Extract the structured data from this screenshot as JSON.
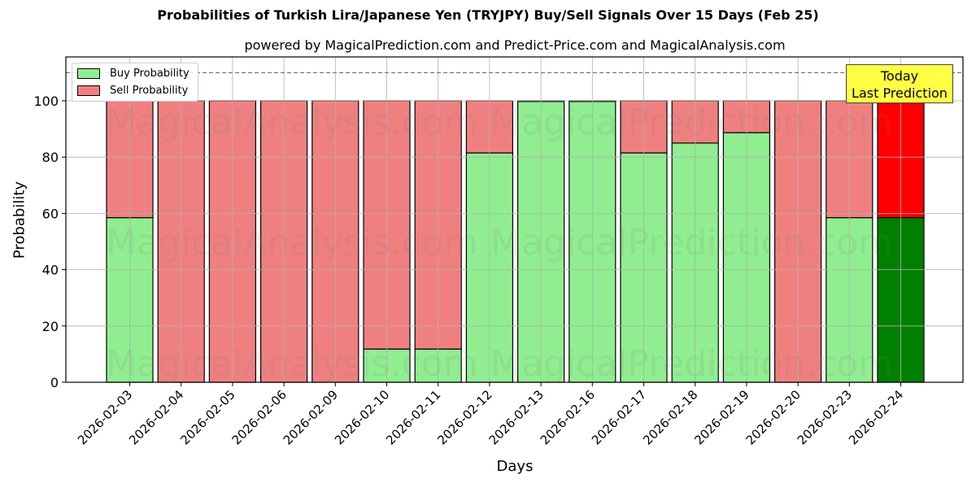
{
  "title": "Probabilities of Turkish Lira/Japanese Yen (TRYJPY) Buy/Sell Signals Over 15 Days (Feb 25)",
  "subtitle": "powered by MagicalPrediction.com and Predict-Price.com and MagicalAnalysis.com",
  "legend": {
    "buy": "Buy Probability",
    "sell": "Sell Probability"
  },
  "annotation": {
    "line1": "Today",
    "line2": "Last Prediction"
  },
  "watermarks": [
    "MagicalAnalysis.com",
    "MagicalPrediction.com"
  ],
  "colors": {
    "buy": "#90ee90",
    "sell": "#f08080",
    "today_buy": "#008000",
    "today_sell": "#ff0000",
    "annotation_bg": "#ffff44"
  },
  "chart_data": {
    "type": "bar",
    "stacked": true,
    "title": "Probabilities of Turkish Lira/Japanese Yen (TRYJPY) Buy/Sell Signals Over 15 Days (Feb 25)",
    "subtitle": "powered by MagicalPrediction.com and Predict-Price.com and MagicalAnalysis.com",
    "xlabel": "Days",
    "ylabel": "Probability",
    "ylim": [
      0,
      115
    ],
    "yticks": [
      0,
      20,
      40,
      60,
      80,
      100
    ],
    "grid": true,
    "legend_position": "upper left",
    "reference_line": {
      "y": 110,
      "style": "dashed"
    },
    "categories": [
      "2026-02-03",
      "2026-02-04",
      "2026-02-05",
      "2026-02-06",
      "2026-02-09",
      "2026-02-10",
      "2026-02-11",
      "2026-02-12",
      "2026-02-13",
      "2026-02-16",
      "2026-02-17",
      "2026-02-18",
      "2026-02-19",
      "2026-02-20",
      "2026-02-23",
      "2026-02-24"
    ],
    "series": [
      {
        "name": "Buy Probability",
        "values": [
          58.5,
          0,
          0,
          0,
          0,
          11.8,
          11.8,
          81.5,
          99.8,
          99.8,
          81.5,
          85.0,
          88.7,
          0,
          58.5,
          58.5
        ]
      },
      {
        "name": "Sell Probability",
        "values": [
          41.5,
          100,
          100,
          100,
          100,
          88.2,
          88.2,
          18.5,
          0.2,
          0.2,
          18.5,
          15.0,
          11.3,
          100,
          41.5,
          41.5
        ]
      }
    ],
    "annotations": [
      {
        "text": "Today\nLast Prediction",
        "x": "2026-02-24"
      }
    ]
  }
}
